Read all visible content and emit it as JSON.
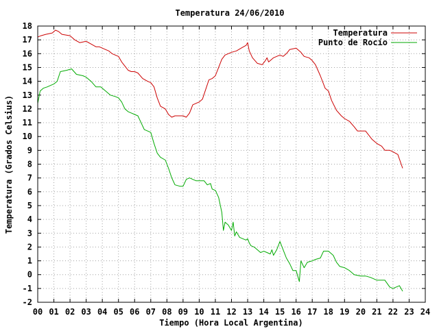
{
  "chart_data": {
    "type": "line",
    "title": "Temperatura 24/06/2010",
    "xlabel": "Tiempo (Hora Local Argentina)",
    "ylabel": "Temperatura (Grados Celsius)",
    "xlim": [
      0,
      24
    ],
    "ylim": [
      -2,
      18
    ],
    "x_ticks": [
      "00",
      "01",
      "02",
      "03",
      "04",
      "05",
      "06",
      "07",
      "08",
      "09",
      "10",
      "11",
      "12",
      "13",
      "14",
      "15",
      "16",
      "17",
      "18",
      "19",
      "20",
      "21",
      "22",
      "23",
      "24"
    ],
    "y_ticks": [
      "-2",
      "-1",
      "0",
      "1",
      "2",
      "3",
      "4",
      "5",
      "6",
      "7",
      "8",
      "9",
      "10",
      "11",
      "12",
      "13",
      "14",
      "15",
      "16",
      "17",
      "18"
    ],
    "grid": true,
    "legend_position": "top-right",
    "series": [
      {
        "name": "Temperatura",
        "color": "#cc0000",
        "x": [
          0.0,
          0.2,
          0.5,
          0.9,
          1.1,
          1.3,
          1.5,
          2.0,
          2.3,
          2.6,
          3.0,
          3.3,
          3.6,
          3.8,
          4.0,
          4.2,
          4.4,
          4.6,
          4.8,
          5.0,
          5.2,
          5.4,
          5.6,
          5.8,
          6.0,
          6.2,
          6.5,
          6.8,
          7.0,
          7.2,
          7.4,
          7.6,
          7.9,
          8.1,
          8.3,
          8.5,
          8.8,
          9.0,
          9.2,
          9.4,
          9.6,
          9.8,
          10.0,
          10.2,
          10.4,
          10.6,
          10.8,
          11.0,
          11.2,
          11.4,
          11.6,
          11.8,
          12.0,
          12.3,
          12.6,
          12.9,
          13.0,
          13.1,
          13.3,
          13.6,
          13.9,
          14.1,
          14.2,
          14.3,
          14.4,
          14.6,
          15.0,
          15.2,
          15.4,
          15.6,
          16.0,
          16.3,
          16.5,
          16.8,
          17.0,
          17.2,
          17.5,
          17.8,
          18.0,
          18.2,
          18.5,
          18.8,
          19.0,
          19.3,
          19.6,
          19.8,
          20.0,
          20.3,
          20.5,
          20.7,
          21.0,
          21.3,
          21.5,
          21.8,
          22.0,
          22.3,
          22.6
        ],
        "values": [
          17.2,
          17.3,
          17.4,
          17.5,
          17.7,
          17.6,
          17.4,
          17.3,
          17.0,
          16.8,
          16.9,
          16.7,
          16.5,
          16.5,
          16.4,
          16.3,
          16.2,
          16.0,
          15.9,
          15.8,
          15.4,
          15.1,
          14.8,
          14.7,
          14.7,
          14.6,
          14.2,
          14.0,
          13.9,
          13.6,
          12.8,
          12.2,
          12.0,
          11.6,
          11.4,
          11.5,
          11.5,
          11.5,
          11.4,
          11.7,
          12.3,
          12.4,
          12.5,
          12.7,
          13.4,
          14.1,
          14.2,
          14.4,
          15.0,
          15.6,
          15.9,
          16.0,
          16.1,
          16.2,
          16.4,
          16.6,
          16.8,
          16.2,
          15.7,
          15.3,
          15.2,
          15.5,
          15.7,
          15.4,
          15.5,
          15.7,
          15.9,
          15.8,
          16.0,
          16.3,
          16.4,
          16.1,
          15.8,
          15.7,
          15.5,
          15.2,
          14.4,
          13.5,
          13.3,
          12.6,
          11.9,
          11.5,
          11.3,
          11.1,
          10.7,
          10.4,
          10.4,
          10.4,
          10.1,
          9.8,
          9.5,
          9.3,
          9.0,
          9.0,
          8.9,
          8.7,
          7.7
        ]
      },
      {
        "name": "Punto de Rocío",
        "color": "#00aa00",
        "x": [
          0.0,
          0.15,
          0.35,
          0.6,
          0.8,
          1.0,
          1.2,
          1.4,
          1.8,
          2.1,
          2.4,
          2.8,
          3.0,
          3.3,
          3.6,
          3.9,
          4.2,
          4.5,
          4.8,
          5.0,
          5.2,
          5.4,
          5.6,
          5.8,
          6.0,
          6.2,
          6.4,
          6.6,
          6.8,
          7.0,
          7.2,
          7.4,
          7.6,
          7.9,
          8.1,
          8.3,
          8.5,
          8.8,
          9.0,
          9.2,
          9.4,
          9.6,
          9.8,
          10.0,
          10.3,
          10.5,
          10.7,
          10.8,
          11.0,
          11.2,
          11.4,
          11.5,
          11.6,
          11.8,
          12.0,
          12.1,
          12.2,
          12.3,
          12.5,
          12.7,
          12.9,
          13.0,
          13.1,
          13.2,
          13.4,
          13.6,
          13.8,
          14.0,
          14.2,
          14.4,
          14.5,
          14.6,
          14.8,
          15.0,
          15.2,
          15.4,
          15.6,
          15.8,
          16.0,
          16.2,
          16.3,
          16.5,
          16.7,
          17.0,
          17.2,
          17.5,
          17.7,
          18.0,
          18.3,
          18.5,
          18.7,
          19.0,
          19.3,
          19.6,
          20.0,
          20.3,
          20.6,
          21.0,
          21.2,
          21.5,
          21.8,
          22.0,
          22.2,
          22.4,
          22.6
        ],
        "values": [
          12.4,
          13.3,
          13.5,
          13.6,
          13.7,
          13.8,
          14.0,
          14.7,
          14.8,
          14.9,
          14.5,
          14.4,
          14.3,
          14.0,
          13.6,
          13.6,
          13.3,
          13.0,
          12.9,
          12.8,
          12.5,
          12.0,
          11.8,
          11.7,
          11.6,
          11.5,
          11.0,
          10.5,
          10.4,
          10.3,
          9.5,
          8.8,
          8.5,
          8.3,
          7.7,
          7.0,
          6.5,
          6.4,
          6.4,
          6.9,
          7.0,
          6.9,
          6.8,
          6.8,
          6.8,
          6.5,
          6.6,
          6.2,
          6.1,
          5.6,
          4.5,
          3.2,
          3.8,
          3.6,
          3.2,
          3.8,
          2.8,
          3.1,
          2.7,
          2.6,
          2.5,
          2.6,
          2.3,
          2.1,
          2.0,
          1.8,
          1.6,
          1.7,
          1.6,
          1.5,
          1.8,
          1.4,
          1.8,
          2.4,
          1.8,
          1.2,
          0.8,
          0.3,
          0.3,
          -0.5,
          1.0,
          0.5,
          0.9,
          1.0,
          1.1,
          1.2,
          1.7,
          1.7,
          1.4,
          0.9,
          0.6,
          0.5,
          0.3,
          0.0,
          -0.1,
          -0.1,
          -0.2,
          -0.4,
          -0.4,
          -0.4,
          -0.9,
          -1.0,
          -0.9,
          -0.8,
          -1.2
        ]
      }
    ]
  }
}
